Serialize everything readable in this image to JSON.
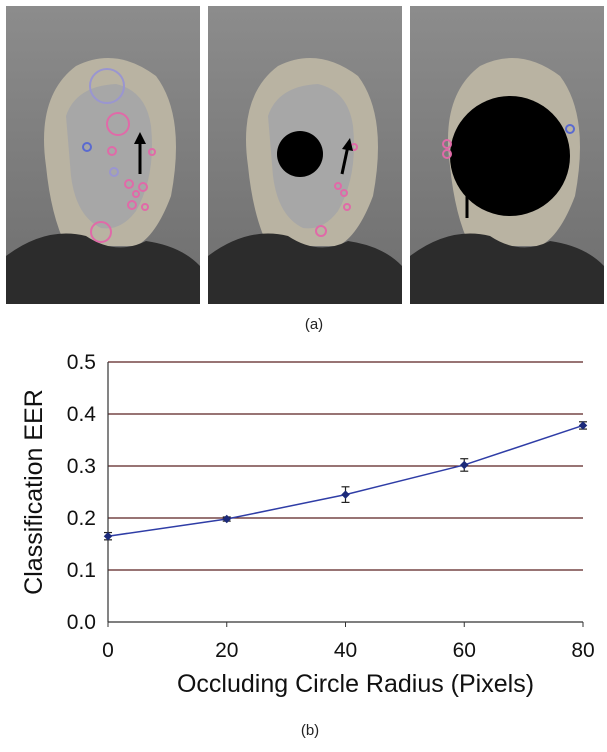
{
  "figure": {
    "caption_a": "(a)",
    "caption_b": "(b)"
  },
  "colors": {
    "series": "#2f3da6",
    "gridline": "#5a2222",
    "marker": "#1c2a7a",
    "feature_pink": "#e06aa8",
    "feature_blue": "#5a6ad0",
    "feature_lavender": "#9a96d0",
    "occluder": "#000000"
  },
  "panels": [
    {
      "name": "original-face",
      "occluder": "none",
      "feature_circles": 15
    },
    {
      "name": "small-occluder",
      "occluder": "small",
      "feature_circles": 6
    },
    {
      "name": "large-occluder",
      "occluder": "large",
      "feature_circles": 4
    }
  ],
  "chart_data": {
    "type": "line",
    "title": "",
    "xlabel": "Occluding Circle Radius (Pixels)",
    "ylabel": "Classification EER",
    "xlim": [
      0,
      80
    ],
    "ylim": [
      0.0,
      0.5
    ],
    "x_ticks": [
      "0",
      "20",
      "40",
      "60",
      "80"
    ],
    "y_ticks": [
      "0.0",
      "0.1",
      "0.2",
      "0.3",
      "0.4",
      "0.5"
    ],
    "grid": "horizontal",
    "legend": "none",
    "series": [
      {
        "x": [
          0,
          20,
          40,
          60,
          80
        ],
        "y": [
          0.165,
          0.198,
          0.245,
          0.302,
          0.378
        ],
        "error": [
          0.007,
          0.004,
          0.015,
          0.012,
          0.007
        ]
      }
    ]
  }
}
